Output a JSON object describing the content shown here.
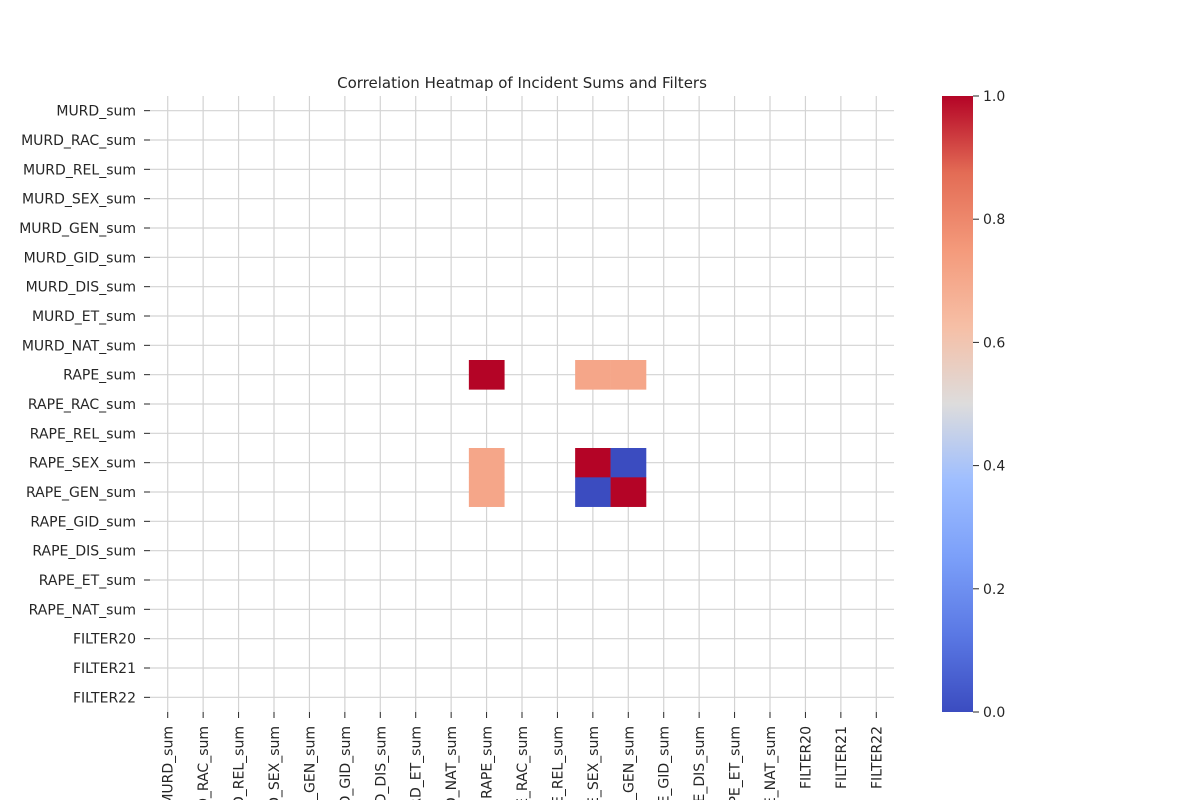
{
  "chart_data": {
    "type": "heatmap",
    "title": "Correlation Heatmap of Incident Sums and Filters",
    "xlabel": "",
    "ylabel": "",
    "row_labels": [
      "MURD_sum",
      "MURD_RAC_sum",
      "MURD_REL_sum",
      "MURD_SEX_sum",
      "MURD_GEN_sum",
      "MURD_GID_sum",
      "MURD_DIS_sum",
      "MURD_ET_sum",
      "MURD_NAT_sum",
      "RAPE_sum",
      "RAPE_RAC_sum",
      "RAPE_REL_sum",
      "RAPE_SEX_sum",
      "RAPE_GEN_sum",
      "RAPE_GID_sum",
      "RAPE_DIS_sum",
      "RAPE_ET_sum",
      "RAPE_NAT_sum",
      "FILTER20",
      "FILTER21",
      "FILTER22"
    ],
    "col_tick_labels": [
      "MURD_sum",
      "MURD_RAC_sum",
      "MURD_REL_sum",
      "MURD_SEX_sum",
      "MURD_GEN_sum",
      "MURD_GID_sum",
      "MURD_DIS_sum",
      "MURD_ET_sum",
      "MURD_NAT_sum",
      "RAPE_sum",
      "RAPE_RAC_sum",
      "RAPE_REL_sum",
      "RAPE_SEX_sum",
      "RAPE_GEN_sum",
      "RAPE_GID_sum",
      "RAPE_DIS_sum",
      "RAPE_ET_sum",
      "RAPE_NAT_sum",
      "FILTER20",
      "FILTER21",
      "FILTER22"
    ],
    "cells": [
      {
        "row": "RAPE_sum",
        "col": "RAPE_sum",
        "value": 1.0
      },
      {
        "row": "RAPE_sum",
        "col": "RAPE_SEX_sum",
        "value": 0.71
      },
      {
        "row": "RAPE_sum",
        "col": "RAPE_GEN_sum",
        "value": 0.71
      },
      {
        "row": "RAPE_SEX_sum",
        "col": "RAPE_sum",
        "value": 0.71
      },
      {
        "row": "RAPE_SEX_sum",
        "col": "RAPE_SEX_sum",
        "value": 1.0
      },
      {
        "row": "RAPE_SEX_sum",
        "col": "RAPE_GEN_sum",
        "value": 0.0
      },
      {
        "row": "RAPE_GEN_sum",
        "col": "RAPE_sum",
        "value": 0.71
      },
      {
        "row": "RAPE_GEN_sum",
        "col": "RAPE_SEX_sum",
        "value": 0.0
      },
      {
        "row": "RAPE_GEN_sum",
        "col": "RAPE_GEN_sum",
        "value": 1.0
      }
    ],
    "missing_cells": "blank",
    "colormap": "coolwarm",
    "color_range": [
      0.0,
      1.0
    ],
    "colorbar_ticks": [
      "0.0",
      "0.2",
      "0.4",
      "0.6",
      "0.8",
      "1.0"
    ],
    "colorbar_tick_values": [
      0.0,
      0.2,
      0.4,
      0.6,
      0.8,
      1.0
    ],
    "colormap_stops": [
      {
        "v": 0.0,
        "color": "#3b4cc0"
      },
      {
        "v": 0.125,
        "color": "#5a78e4"
      },
      {
        "v": 0.25,
        "color": "#7b9ff9"
      },
      {
        "v": 0.375,
        "color": "#9ebeff"
      },
      {
        "v": 0.5,
        "color": "#dddcdc"
      },
      {
        "v": 0.625,
        "color": "#f6bfa6"
      },
      {
        "v": 0.75,
        "color": "#f49a7b"
      },
      {
        "v": 0.875,
        "color": "#e36c55"
      },
      {
        "v": 1.0,
        "color": "#b40426"
      }
    ],
    "grid": true,
    "grid_color": "#d3d3d3",
    "colorbar_position": "right"
  }
}
